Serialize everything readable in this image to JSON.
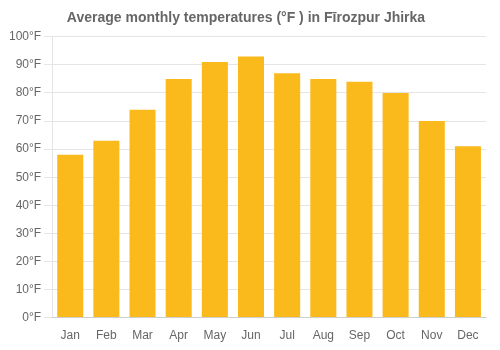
{
  "chart_data": {
    "type": "bar",
    "title": "Average monthly temperatures (°F ) in Fīrozpur Jhirka",
    "categories": [
      "Jan",
      "Feb",
      "Mar",
      "Apr",
      "May",
      "Jun",
      "Jul",
      "Aug",
      "Sep",
      "Oct",
      "Nov",
      "Dec"
    ],
    "values": [
      58,
      63,
      74,
      85,
      91,
      93,
      87,
      85,
      84,
      80,
      70,
      61
    ],
    "color": "#FBBA1C",
    "ylim": [
      0,
      100
    ],
    "yticks": [
      {
        "value": 0,
        "label": "0°F"
      },
      {
        "value": 10,
        "label": "10°F"
      },
      {
        "value": 20,
        "label": "20°F"
      },
      {
        "value": 30,
        "label": "30°F"
      },
      {
        "value": 40,
        "label": "40°F"
      },
      {
        "value": 50,
        "label": "50°F"
      },
      {
        "value": 60,
        "label": "60°F"
      },
      {
        "value": 70,
        "label": "70°F"
      },
      {
        "value": 80,
        "label": "80°F"
      },
      {
        "value": 90,
        "label": "90°F"
      },
      {
        "value": 100,
        "label": "100°F"
      }
    ],
    "grid": true
  }
}
